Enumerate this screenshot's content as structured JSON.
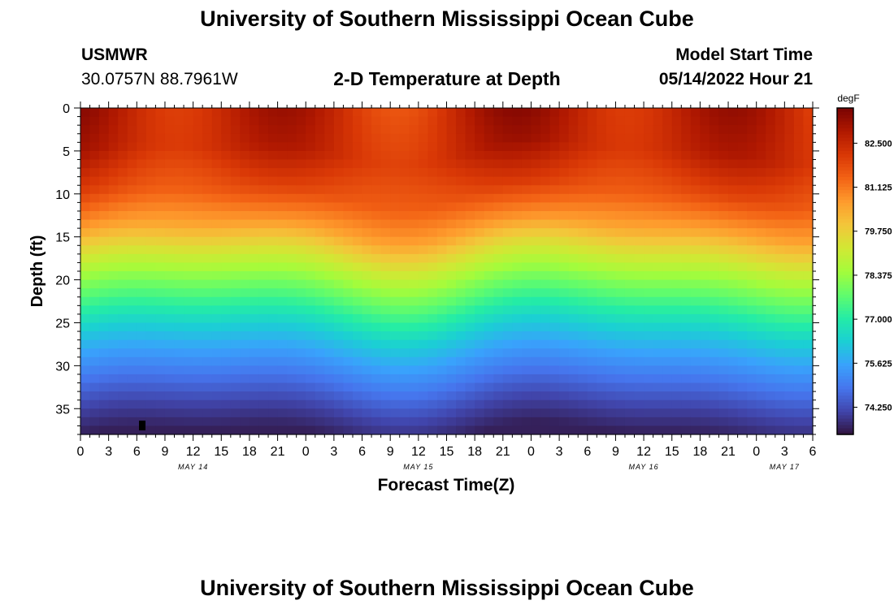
{
  "page": {
    "title": "University of Southern Mississippi Ocean Cube",
    "title_repeat": "University of Southern Mississippi Ocean Cube"
  },
  "header": {
    "station": "USMWR",
    "coordinates": "30.0757N  88.7961W",
    "plot_title": "2-D Temperature at Depth",
    "model_start_label": "Model Start Time",
    "model_start_value": "05/14/2022 Hour 21"
  },
  "chart_data": {
    "type": "heatmap",
    "title": "2-D Temperature at Depth",
    "xlabel": "Forecast Time(Z)",
    "ylabel": "Depth (ft)",
    "x_tick_labels": [
      "0",
      "3",
      "6",
      "9",
      "12",
      "15",
      "18",
      "21",
      "0",
      "3",
      "6",
      "9",
      "12",
      "15",
      "18",
      "21",
      "0",
      "3",
      "6",
      "9",
      "12",
      "15",
      "18",
      "21",
      "0",
      "3",
      "6"
    ],
    "x_range_hours": [
      0,
      78
    ],
    "date_labels": [
      {
        "label": "MAY 14",
        "hour": 12
      },
      {
        "label": "MAY 15",
        "hour": 36
      },
      {
        "label": "MAY 16",
        "hour": 60
      },
      {
        "label": "MAY 17",
        "hour": 75
      }
    ],
    "y_ticks": [
      0,
      5,
      10,
      15,
      20,
      25,
      30,
      35
    ],
    "y_range_ft": [
      0,
      38
    ],
    "colorbar": {
      "unit": "degF",
      "ticks": [
        "82.500",
        "81.125",
        "79.750",
        "78.375",
        "77.000",
        "75.625",
        "74.250"
      ],
      "range": [
        73.4,
        83.6
      ],
      "colors": [
        "#30123b",
        "#4145ab",
        "#4675ed",
        "#39a2fc",
        "#1bcfd4",
        "#24eca6",
        "#61fc6c",
        "#a4fc3b",
        "#d1e834",
        "#f3c63a",
        "#fe9b2d",
        "#f36315",
        "#d93806",
        "#b11901",
        "#7a0402"
      ]
    },
    "depth_profile": {
      "depths_ft": [
        0,
        5,
        10,
        14,
        17,
        20,
        23,
        26,
        29,
        32,
        35,
        38
      ],
      "temps_degF": [
        82.6,
        82.5,
        81.7,
        80.6,
        79.4,
        78.3,
        77.3,
        76.3,
        75.5,
        74.8,
        74.1,
        73.6
      ]
    }
  }
}
